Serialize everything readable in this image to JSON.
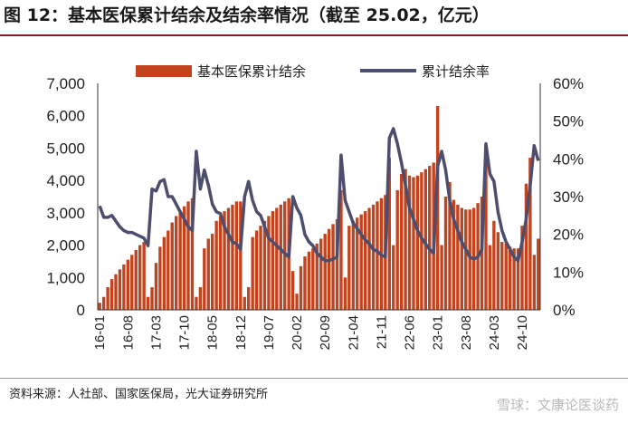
{
  "title": "图 12：基本医保累计结余及结余率情况（截至 25.02，亿元）",
  "source": "资料来源：人社部、国家医保局，光大证券研究所",
  "watermark": "雪球：文康论医谈药",
  "colors": {
    "bar": "#c1441f",
    "line": "#4d4d6e",
    "accent": "#8a1f1a"
  },
  "chart_data": {
    "type": "bar+line",
    "legend_position": "top",
    "series": [
      {
        "name": "基本医保累计结余",
        "type": "bar",
        "axis": "left",
        "color": "#c1441f"
      },
      {
        "name": "累计结余率",
        "type": "line",
        "axis": "right",
        "color": "#4d4d6e"
      }
    ],
    "y_left": {
      "min": 0,
      "max": 7000,
      "ticks": [
        "0",
        "1,000",
        "2,000",
        "3,000",
        "4,000",
        "5,000",
        "6,000",
        "7,000"
      ]
    },
    "y_right": {
      "min": 0,
      "max": 60,
      "ticks": [
        "0%",
        "10%",
        "20%",
        "30%",
        "40%",
        "50%",
        "60%"
      ]
    },
    "x_ticks": [
      "16-01",
      "16-08",
      "17-03",
      "17-10",
      "18-05",
      "18-12",
      "19-07",
      "20-02",
      "20-09",
      "21-04",
      "21-11",
      "22-06",
      "23-01",
      "23-08",
      "24-03",
      "24-10"
    ],
    "segments": [
      {
        "start": "2016-01",
        "bars": [
          220,
          400,
          700,
          950,
          1100,
          1250,
          1400,
          1550,
          1700,
          1850,
          2000,
          2100
        ],
        "rates": [
          27.5,
          24.5,
          24.5,
          25,
          23.5,
          22,
          21,
          20.5,
          20.5,
          20,
          19.5,
          19
        ]
      },
      {
        "start": "2017-01",
        "bars": [
          400,
          700,
          1450,
          1950,
          2250,
          2450,
          2700,
          2900,
          3050,
          3200,
          3350,
          3450
        ],
        "rates": [
          17,
          32,
          31.5,
          34,
          34.5,
          30,
          30,
          28,
          26,
          24,
          22,
          21
        ]
      },
      {
        "start": "2018-01",
        "bars": [
          400,
          700,
          1900,
          2200,
          2350,
          2750,
          2900,
          3050,
          3150,
          3250,
          3350,
          3350
        ],
        "rates": [
          42,
          32,
          37,
          33,
          28,
          26,
          25.5,
          22,
          20,
          18,
          17.5,
          16
        ]
      },
      {
        "start": "2019-01",
        "bars": [
          400,
          700,
          2250,
          2450,
          2600,
          2750,
          2900,
          3050,
          3150,
          3250,
          3350,
          3450
        ],
        "rates": [
          30,
          34,
          29,
          26,
          25,
          22,
          19,
          18,
          17,
          16,
          15,
          14
        ]
      },
      {
        "start": "2020-01",
        "bars": [
          1200,
          500,
          1350,
          1650,
          1800,
          1900,
          2050,
          2200,
          2350,
          2500,
          2650,
          2800
        ],
        "rates": [
          30,
          27,
          25,
          20,
          18,
          17,
          15,
          14,
          13,
          13,
          13.5,
          14
        ]
      },
      {
        "start": "2021-01",
        "bars": [
          3700,
          1000,
          2600,
          2750,
          2850,
          2950,
          3050,
          3150,
          3250,
          3350,
          3450,
          3550
        ],
        "rates": [
          41,
          29,
          26,
          23,
          21.5,
          20,
          18.5,
          17.5,
          16,
          15.5,
          14.5,
          14
        ]
      },
      {
        "start": "2022-01",
        "bars": [
          4700,
          2000,
          3700,
          4200,
          4350,
          4150,
          4100,
          4150,
          4250,
          4350,
          4450,
          4550
        ],
        "rates": [
          45.5,
          48,
          44,
          39,
          33,
          27,
          24,
          21,
          19,
          17.5,
          16,
          15
        ]
      },
      {
        "start": "2023-01",
        "bars": [
          6300,
          2000,
          3500,
          3950,
          3400,
          3250,
          3150,
          3100,
          3100,
          3150,
          3300,
          3500
        ],
        "rates": [
          38,
          42,
          37,
          29,
          24,
          21,
          18,
          16,
          14,
          13.5,
          14,
          16
        ]
      },
      {
        "start": "2024-01",
        "bars": [
          5100,
          2000,
          2750,
          2400,
          2100,
          2050,
          1950,
          1900,
          1900,
          2600,
          3900,
          4700
        ],
        "rates": [
          44,
          36,
          34,
          26,
          21,
          18,
          16,
          14,
          13,
          18,
          24,
          33
        ]
      },
      {
        "start": "2025-01",
        "bars": [
          1700,
          2200
        ],
        "rates": [
          43.5,
          39.5
        ]
      }
    ]
  }
}
